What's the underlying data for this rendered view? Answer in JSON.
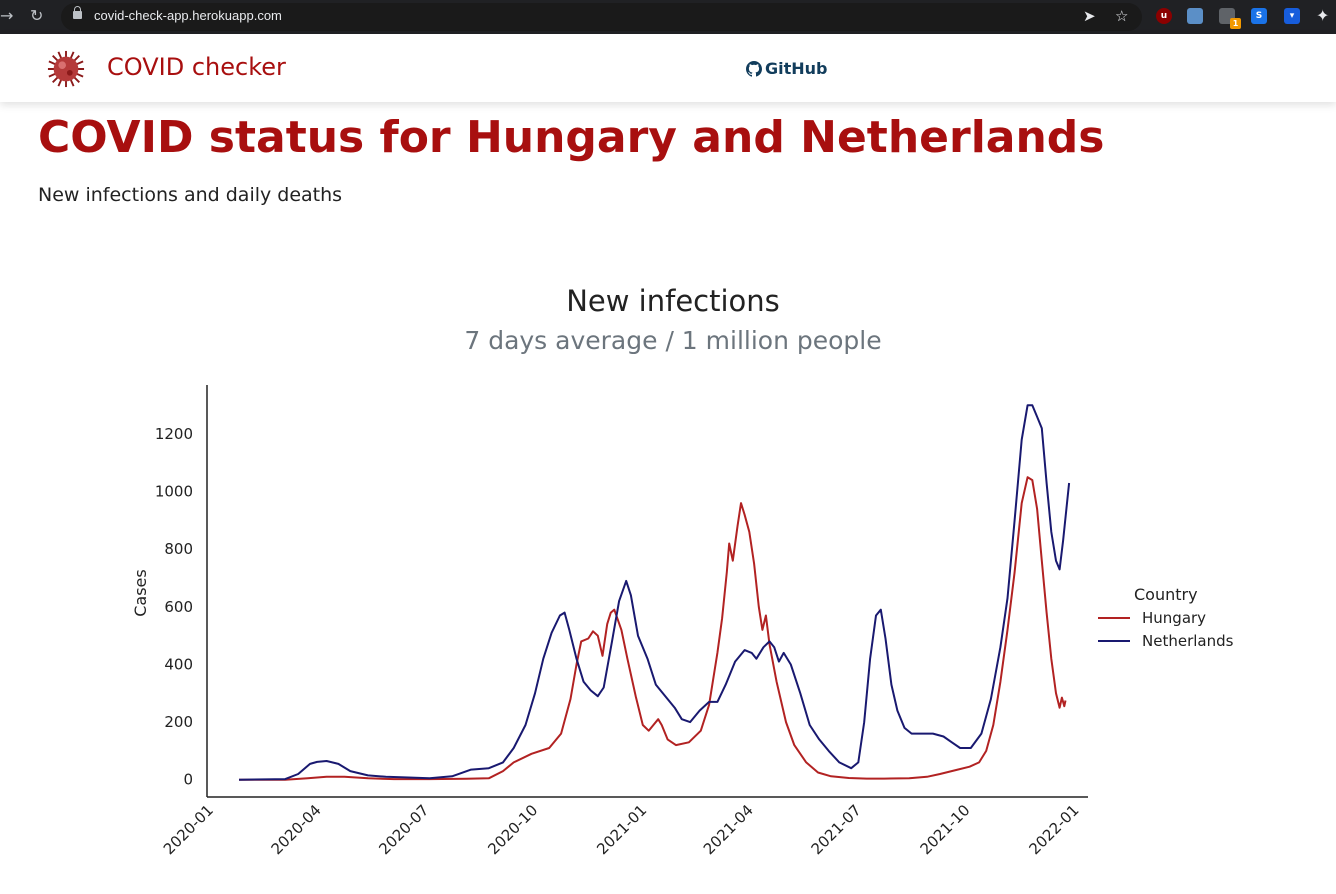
{
  "browser": {
    "url": "covid-check-app.herokuapp.com",
    "extension_badge": "1"
  },
  "navbar": {
    "brand": "COVID checker",
    "github_label": "GitHub"
  },
  "page": {
    "title": "COVID status for Hungary and Netherlands",
    "subtitle": "New infections and daily deaths"
  },
  "chart_header": {
    "title": "New infections",
    "subtitle": "7 days average / 1 million people"
  },
  "colors": {
    "brand": "#a80f0f",
    "hungary": "#b22222",
    "netherlands": "#191970",
    "github": "#123d5c"
  },
  "chart_data": {
    "type": "line",
    "ylabel": "Cases",
    "xlabel": "",
    "ylim": [
      -60,
      1370
    ],
    "xlim": [
      "2019-12-26",
      "2022-01-08"
    ],
    "yticks": [
      0,
      200,
      400,
      600,
      800,
      1000,
      1200
    ],
    "xticks": [
      "2020-01",
      "2020-04",
      "2020-07",
      "2020-10",
      "2021-01",
      "2021-04",
      "2021-07",
      "2021-10",
      "2022-01"
    ],
    "legend_title": "Country",
    "legend_position": "right",
    "series": [
      {
        "name": "Hungary",
        "color": "#b22222",
        "points": [
          [
            "2020-01-22",
            0
          ],
          [
            "2020-03-01",
            0
          ],
          [
            "2020-03-20",
            5
          ],
          [
            "2020-04-05",
            10
          ],
          [
            "2020-04-20",
            10
          ],
          [
            "2020-05-10",
            5
          ],
          [
            "2020-06-01",
            2
          ],
          [
            "2020-07-01",
            2
          ],
          [
            "2020-08-01",
            3
          ],
          [
            "2020-08-20",
            5
          ],
          [
            "2020-09-01",
            30
          ],
          [
            "2020-09-10",
            60
          ],
          [
            "2020-09-25",
            90
          ],
          [
            "2020-10-10",
            110
          ],
          [
            "2020-10-20",
            160
          ],
          [
            "2020-10-28",
            280
          ],
          [
            "2020-11-02",
            400
          ],
          [
            "2020-11-06",
            480
          ],
          [
            "2020-11-12",
            490
          ],
          [
            "2020-11-16",
            515
          ],
          [
            "2020-11-20",
            500
          ],
          [
            "2020-11-24",
            430
          ],
          [
            "2020-11-28",
            540
          ],
          [
            "2020-12-01",
            580
          ],
          [
            "2020-12-04",
            590
          ],
          [
            "2020-12-10",
            520
          ],
          [
            "2020-12-15",
            420
          ],
          [
            "2020-12-22",
            290
          ],
          [
            "2020-12-28",
            190
          ],
          [
            "2021-01-02",
            170
          ],
          [
            "2021-01-06",
            190
          ],
          [
            "2021-01-10",
            210
          ],
          [
            "2021-01-13",
            190
          ],
          [
            "2021-01-18",
            140
          ],
          [
            "2021-01-25",
            120
          ],
          [
            "2021-02-05",
            130
          ],
          [
            "2021-02-15",
            170
          ],
          [
            "2021-02-22",
            260
          ],
          [
            "2021-03-01",
            440
          ],
          [
            "2021-03-05",
            560
          ],
          [
            "2021-03-09",
            720
          ],
          [
            "2021-03-11",
            820
          ],
          [
            "2021-03-14",
            760
          ],
          [
            "2021-03-18",
            880
          ],
          [
            "2021-03-21",
            960
          ],
          [
            "2021-03-24",
            920
          ],
          [
            "2021-03-28",
            860
          ],
          [
            "2021-04-01",
            750
          ],
          [
            "2021-04-05",
            600
          ],
          [
            "2021-04-08",
            520
          ],
          [
            "2021-04-11",
            570
          ],
          [
            "2021-04-14",
            470
          ],
          [
            "2021-04-20",
            340
          ],
          [
            "2021-04-28",
            200
          ],
          [
            "2021-05-05",
            120
          ],
          [
            "2021-05-15",
            60
          ],
          [
            "2021-05-25",
            25
          ],
          [
            "2021-06-05",
            12
          ],
          [
            "2021-06-20",
            6
          ],
          [
            "2021-07-05",
            4
          ],
          [
            "2021-07-20",
            4
          ],
          [
            "2021-08-10",
            5
          ],
          [
            "2021-08-25",
            10
          ],
          [
            "2021-09-05",
            20
          ],
          [
            "2021-09-20",
            35
          ],
          [
            "2021-09-30",
            45
          ],
          [
            "2021-10-08",
            60
          ],
          [
            "2021-10-14",
            100
          ],
          [
            "2021-10-20",
            190
          ],
          [
            "2021-10-26",
            340
          ],
          [
            "2021-11-01",
            520
          ],
          [
            "2021-11-07",
            720
          ],
          [
            "2021-11-13",
            960
          ],
          [
            "2021-11-18",
            1050
          ],
          [
            "2021-11-22",
            1040
          ],
          [
            "2021-11-26",
            940
          ],
          [
            "2021-11-30",
            760
          ],
          [
            "2021-12-04",
            580
          ],
          [
            "2021-12-08",
            420
          ],
          [
            "2021-12-12",
            300
          ],
          [
            "2021-12-15",
            250
          ],
          [
            "2021-12-17",
            285
          ],
          [
            "2021-12-19",
            255
          ],
          [
            "2021-12-20",
            275
          ]
        ]
      },
      {
        "name": "Netherlands",
        "color": "#191970",
        "points": [
          [
            "2020-01-22",
            0
          ],
          [
            "2020-03-01",
            2
          ],
          [
            "2020-03-12",
            20
          ],
          [
            "2020-03-22",
            55
          ],
          [
            "2020-03-28",
            62
          ],
          [
            "2020-04-05",
            65
          ],
          [
            "2020-04-15",
            55
          ],
          [
            "2020-04-25",
            30
          ],
          [
            "2020-05-10",
            15
          ],
          [
            "2020-05-25",
            10
          ],
          [
            "2020-06-10",
            8
          ],
          [
            "2020-07-01",
            5
          ],
          [
            "2020-07-20",
            12
          ],
          [
            "2020-08-05",
            35
          ],
          [
            "2020-08-20",
            40
          ],
          [
            "2020-09-01",
            60
          ],
          [
            "2020-09-10",
            110
          ],
          [
            "2020-09-20",
            190
          ],
          [
            "2020-09-28",
            300
          ],
          [
            "2020-10-05",
            420
          ],
          [
            "2020-10-12",
            510
          ],
          [
            "2020-10-19",
            570
          ],
          [
            "2020-10-23",
            580
          ],
          [
            "2020-10-27",
            520
          ],
          [
            "2020-11-02",
            420
          ],
          [
            "2020-11-08",
            340
          ],
          [
            "2020-11-14",
            310
          ],
          [
            "2020-11-20",
            290
          ],
          [
            "2020-11-25",
            320
          ],
          [
            "2020-12-02",
            480
          ],
          [
            "2020-12-08",
            620
          ],
          [
            "2020-12-14",
            690
          ],
          [
            "2020-12-18",
            640
          ],
          [
            "2020-12-24",
            500
          ],
          [
            "2021-01-01",
            420
          ],
          [
            "2021-01-08",
            330
          ],
          [
            "2021-01-16",
            290
          ],
          [
            "2021-01-24",
            250
          ],
          [
            "2021-01-30",
            210
          ],
          [
            "2021-02-06",
            200
          ],
          [
            "2021-02-14",
            240
          ],
          [
            "2021-02-22",
            270
          ],
          [
            "2021-03-01",
            270
          ],
          [
            "2021-03-08",
            330
          ],
          [
            "2021-03-16",
            410
          ],
          [
            "2021-03-24",
            450
          ],
          [
            "2021-03-30",
            440
          ],
          [
            "2021-04-03",
            420
          ],
          [
            "2021-04-09",
            460
          ],
          [
            "2021-04-14",
            480
          ],
          [
            "2021-04-18",
            460
          ],
          [
            "2021-04-22",
            410
          ],
          [
            "2021-04-26",
            440
          ],
          [
            "2021-05-02",
            400
          ],
          [
            "2021-05-10",
            300
          ],
          [
            "2021-05-18",
            190
          ],
          [
            "2021-05-26",
            140
          ],
          [
            "2021-06-03",
            100
          ],
          [
            "2021-06-12",
            60
          ],
          [
            "2021-06-22",
            40
          ],
          [
            "2021-06-28",
            60
          ],
          [
            "2021-07-03",
            200
          ],
          [
            "2021-07-08",
            420
          ],
          [
            "2021-07-13",
            570
          ],
          [
            "2021-07-17",
            590
          ],
          [
            "2021-07-21",
            490
          ],
          [
            "2021-07-26",
            330
          ],
          [
            "2021-07-31",
            240
          ],
          [
            "2021-08-06",
            180
          ],
          [
            "2021-08-12",
            160
          ],
          [
            "2021-08-20",
            160
          ],
          [
            "2021-08-30",
            160
          ],
          [
            "2021-09-08",
            150
          ],
          [
            "2021-09-15",
            130
          ],
          [
            "2021-09-22",
            110
          ],
          [
            "2021-10-01",
            110
          ],
          [
            "2021-10-10",
            160
          ],
          [
            "2021-10-18",
            280
          ],
          [
            "2021-10-26",
            460
          ],
          [
            "2021-11-01",
            630
          ],
          [
            "2021-11-07",
            900
          ],
          [
            "2021-11-13",
            1180
          ],
          [
            "2021-11-18",
            1300
          ],
          [
            "2021-11-22",
            1300
          ],
          [
            "2021-11-26",
            1260
          ],
          [
            "2021-11-30",
            1220
          ],
          [
            "2021-12-04",
            1030
          ],
          [
            "2021-12-08",
            860
          ],
          [
            "2021-12-12",
            760
          ],
          [
            "2021-12-15",
            730
          ],
          [
            "2021-12-18",
            830
          ],
          [
            "2021-12-21",
            950
          ],
          [
            "2021-12-23",
            1030
          ]
        ]
      }
    ]
  }
}
